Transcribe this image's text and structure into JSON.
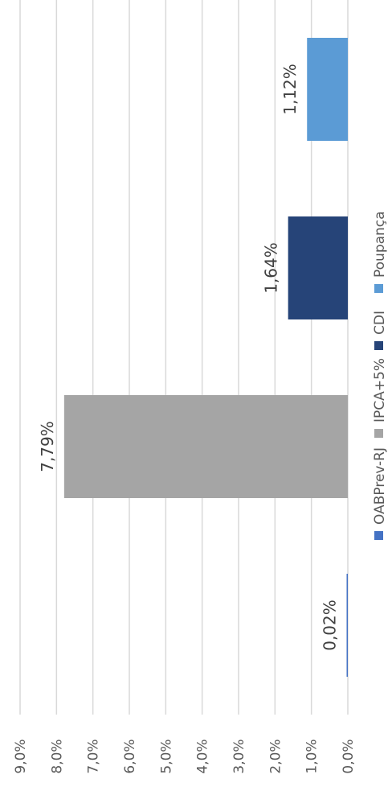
{
  "chart_data": {
    "type": "bar",
    "orientation": "vertical, rotated 90° counter-clockwise",
    "categories": [
      "OABPrev-RJ",
      "IPCA+5%",
      "CDI",
      "Poupança"
    ],
    "values": [
      0.02,
      7.79,
      1.64,
      1.12
    ],
    "value_labels": [
      "0,02%",
      "7,79%",
      "1,64%",
      "1,12%"
    ],
    "colors": [
      "#4472C4",
      "#A5A5A5",
      "#264478",
      "#5B9BD5"
    ],
    "ylim": [
      0,
      9
    ],
    "y_ticks": [
      0,
      1,
      2,
      3,
      4,
      5,
      6,
      7,
      8,
      9
    ],
    "y_tick_labels": [
      "0,0%",
      "1,0%",
      "2,0%",
      "3,0%",
      "4,0%",
      "5,0%",
      "6,0%",
      "7,0%",
      "8,0%",
      "9,0%"
    ],
    "title": "",
    "xlabel": "",
    "ylabel": "",
    "grid": true,
    "legend_position": "bottom",
    "legend": [
      "OABPrev-RJ",
      "IPCA+5%",
      "CDI",
      "Poupança"
    ]
  }
}
